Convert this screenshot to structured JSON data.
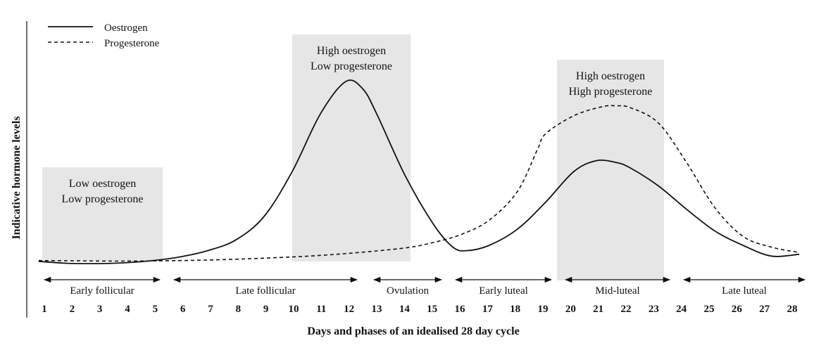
{
  "chart_data": {
    "type": "line",
    "xlabel": "Days and phases of an idealised 28 day cycle",
    "ylabel": "Indicative hormone levels",
    "x": [
      1,
      2,
      3,
      4,
      5,
      6,
      7,
      8,
      9,
      10,
      11,
      12,
      13,
      14,
      15,
      16,
      17,
      18,
      19,
      20,
      21,
      22,
      23,
      24,
      25,
      26,
      27,
      28
    ],
    "xlim": [
      1,
      28
    ],
    "ylim": [
      0,
      100
    ],
    "series": [
      {
        "name": "Oestrogen",
        "style": "solid",
        "points": [
          [
            1,
            0
          ],
          [
            2,
            -1
          ],
          [
            3,
            -1.2
          ],
          [
            4,
            -0.8
          ],
          [
            5,
            0.4
          ],
          [
            6,
            2.5
          ],
          [
            7,
            6
          ],
          [
            8,
            12
          ],
          [
            9,
            25
          ],
          [
            10,
            50
          ],
          [
            11,
            82
          ],
          [
            11.9,
            100
          ],
          [
            12.5,
            96
          ],
          [
            13,
            82
          ],
          [
            14,
            48
          ],
          [
            15,
            21
          ],
          [
            15.7,
            8
          ],
          [
            16.2,
            6
          ],
          [
            17,
            9
          ],
          [
            18,
            18
          ],
          [
            19,
            33
          ],
          [
            20,
            50
          ],
          [
            20.8,
            56
          ],
          [
            21.5,
            55
          ],
          [
            22,
            52
          ],
          [
            23,
            42
          ],
          [
            24,
            29
          ],
          [
            25,
            17
          ],
          [
            26,
            9
          ],
          [
            27,
            3
          ],
          [
            28,
            4
          ]
        ]
      },
      {
        "name": "Progesterone",
        "style": "dashed",
        "points": [
          [
            1,
            0.5
          ],
          [
            4,
            0.2
          ],
          [
            7,
            0.8
          ],
          [
            10,
            2.5
          ],
          [
            12,
            4.5
          ],
          [
            14,
            7.5
          ],
          [
            15,
            10.5
          ],
          [
            16,
            15
          ],
          [
            17,
            23
          ],
          [
            18,
            39
          ],
          [
            18.7,
            62
          ],
          [
            19,
            71
          ],
          [
            20,
            81
          ],
          [
            21,
            86
          ],
          [
            21.5,
            86.5
          ],
          [
            22,
            85.5
          ],
          [
            23,
            77
          ],
          [
            24,
            55
          ],
          [
            25,
            30
          ],
          [
            26,
            14
          ],
          [
            27,
            8
          ],
          [
            28,
            5
          ]
        ]
      }
    ],
    "legend": [
      {
        "label": "Oestrogen",
        "style": "solid"
      },
      {
        "label": "Progesterone",
        "style": "dashed"
      }
    ],
    "legend_position": "top-left",
    "shaded_regions": [
      {
        "from": 1,
        "to": 5.4,
        "line1": "Low oestrogen",
        "line2": "Low progesterone"
      },
      {
        "from": 10,
        "to": 14.2,
        "line1": "High oestrogen",
        "line2": "Low progesterone"
      },
      {
        "from": 19.4,
        "to": 23.2,
        "line1": "High oestrogen",
        "line2": "High progesterone"
      }
    ],
    "phases": [
      {
        "label": "Early follicular",
        "from": 1.2,
        "to": 5.3
      },
      {
        "label": "Late follicular",
        "from": 5.8,
        "to": 12.3
      },
      {
        "label": "Ovulation",
        "from": 12.9,
        "to": 15.3
      },
      {
        "label": "Early luteal",
        "from": 15.8,
        "to": 19.2
      },
      {
        "label": "Mid-luteal",
        "from": 19.7,
        "to": 23.4
      },
      {
        "label": "Late luteal",
        "from": 23.9,
        "to": 28.2
      }
    ]
  }
}
